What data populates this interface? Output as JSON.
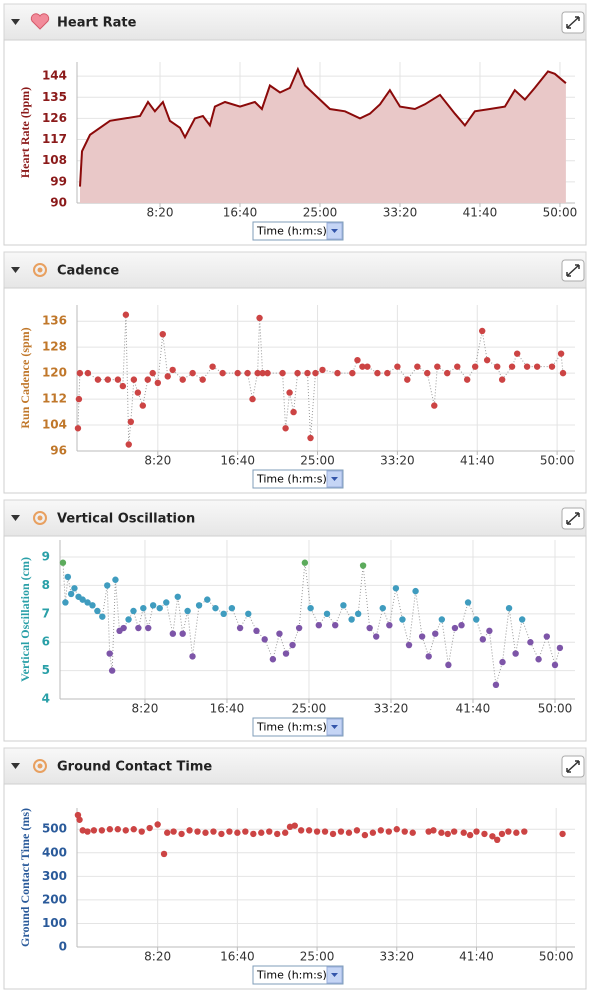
{
  "chart_data": [
    {
      "type": "area",
      "title": "Heart Rate",
      "ylabel": "Heart Rate (bpm)",
      "xlabel": "Time (h:m:s)",
      "color": "#8b0a0a",
      "fill_color": "#e9c8c8",
      "label_color": "#8b1a1a",
      "grid": true,
      "xlim": [
        -19,
        3094
      ],
      "ylim": [
        90,
        150
      ],
      "xticks": [
        {
          "value": 500,
          "label": "8:20"
        },
        {
          "value": 1000,
          "label": "16:40"
        },
        {
          "value": 1500,
          "label": "25:00"
        },
        {
          "value": 2000,
          "label": "33:20"
        },
        {
          "value": 2500,
          "label": "41:40"
        },
        {
          "value": 3000,
          "label": "50:00"
        }
      ],
      "yticks": [
        90,
        99,
        108,
        117,
        126,
        135,
        144
      ],
      "x": [
        0,
        12,
        62,
        125,
        187,
        281,
        375,
        425,
        468,
        518,
        562,
        625,
        656,
        718,
        768,
        812,
        843,
        906,
        1000,
        1093,
        1137,
        1187,
        1250,
        1312,
        1362,
        1406,
        1468,
        1562,
        1656,
        1750,
        1812,
        1875,
        1937,
        2000,
        2093,
        2156,
        2250,
        2343,
        2406,
        2468,
        2562,
        2656,
        2718,
        2781,
        2843,
        2925,
        2968,
        3037
      ],
      "values": [
        97,
        112,
        119,
        122,
        125,
        126,
        127,
        133,
        129,
        133,
        125,
        122,
        118,
        126,
        127,
        123,
        131,
        133,
        131,
        133,
        130,
        140,
        137,
        139,
        147,
        140,
        136,
        130,
        129,
        126,
        128,
        132,
        138,
        131,
        130,
        132,
        136,
        128,
        123,
        129,
        130,
        131,
        138,
        134,
        139,
        146,
        145,
        141
      ]
    },
    {
      "type": "scatter",
      "connect": true,
      "title": "Cadence",
      "ylabel": "Run Cadence (spm)",
      "xlabel": "Time (h:m:s)",
      "color": "#cc4444",
      "label_color": "#c0772a",
      "grid": true,
      "xlim": [
        -6,
        3112
      ],
      "ylim": [
        96,
        141
      ],
      "xticks": [
        {
          "value": 500,
          "label": "8:20"
        },
        {
          "value": 1000,
          "label": "16:40"
        },
        {
          "value": 1500,
          "label": "25:00"
        },
        {
          "value": 2000,
          "label": "33:20"
        },
        {
          "value": 2500,
          "label": "41:40"
        },
        {
          "value": 3000,
          "label": "50:00"
        }
      ],
      "yticks": [
        96,
        104,
        112,
        120,
        128,
        136
      ],
      "x": [
        0,
        6,
        12,
        62,
        125,
        187,
        250,
        281,
        300,
        318,
        331,
        350,
        375,
        406,
        437,
        468,
        500,
        531,
        562,
        593,
        656,
        718,
        781,
        843,
        906,
        1000,
        1062,
        1093,
        1125,
        1137,
        1156,
        1187,
        1281,
        1300,
        1325,
        1350,
        1375,
        1437,
        1456,
        1487,
        1531,
        1625,
        1718,
        1750,
        1781,
        1812,
        1875,
        1937,
        2000,
        2062,
        2125,
        2187,
        2231,
        2250,
        2312,
        2375,
        2437,
        2487,
        2531,
        2562,
        2625,
        2656,
        2718,
        2750,
        2812,
        2875,
        2968,
        3025,
        3037
      ],
      "values": [
        103,
        112,
        120,
        120,
        118,
        118,
        118,
        116,
        138,
        98,
        105,
        118,
        114,
        110,
        118,
        120,
        117,
        132,
        119,
        121,
        118,
        120,
        118,
        122,
        120,
        120,
        120,
        112,
        120,
        137,
        120,
        120,
        120,
        103,
        114,
        108,
        120,
        120,
        100,
        120,
        121,
        120,
        120,
        124,
        122,
        122,
        120,
        120,
        122,
        118,
        122,
        120,
        110,
        122,
        120,
        122,
        118,
        122,
        133,
        124,
        122,
        118,
        122,
        126,
        122,
        122,
        122,
        126,
        120
      ]
    },
    {
      "type": "scatter",
      "connect": true,
      "title": "Vertical Oscillation",
      "ylabel": "Vertical Oscillation (cm)",
      "xlabel": "Time (h:m:s)",
      "label_color": "#2aa0a8",
      "grid": true,
      "xlim": [
        -18,
        3122
      ],
      "ylim": [
        4,
        9.6
      ],
      "xticks": [
        {
          "value": 500,
          "label": "8:20"
        },
        {
          "value": 1000,
          "label": "16:40"
        },
        {
          "value": 1500,
          "label": "25:00"
        },
        {
          "value": 2000,
          "label": "33:20"
        },
        {
          "value": 2500,
          "label": "41:40"
        },
        {
          "value": 3000,
          "label": "50:00"
        }
      ],
      "yticks": [
        4,
        5,
        6,
        7,
        8,
        9
      ],
      "x": [
        0,
        15,
        30,
        50,
        70,
        95,
        120,
        150,
        180,
        210,
        240,
        270,
        285,
        300,
        320,
        345,
        370,
        400,
        430,
        460,
        490,
        520,
        550,
        590,
        630,
        670,
        700,
        730,
        760,
        790,
        830,
        880,
        930,
        980,
        1030,
        1080,
        1130,
        1180,
        1230,
        1280,
        1320,
        1360,
        1400,
        1440,
        1475,
        1510,
        1560,
        1610,
        1660,
        1710,
        1760,
        1800,
        1830,
        1870,
        1910,
        1950,
        1990,
        2030,
        2070,
        2110,
        2150,
        2190,
        2230,
        2270,
        2310,
        2350,
        2390,
        2430,
        2470,
        2520,
        2560,
        2600,
        2640,
        2680,
        2720,
        2760,
        2800,
        2850,
        2900,
        2950,
        3000,
        3030
      ],
      "values": [
        8.8,
        7.4,
        8.3,
        7.7,
        7.9,
        7.6,
        7.5,
        7.4,
        7.3,
        7.1,
        6.9,
        8.0,
        5.6,
        5.0,
        8.2,
        6.4,
        6.5,
        6.8,
        7.1,
        6.5,
        7.2,
        6.5,
        7.3,
        7.2,
        7.4,
        6.3,
        7.6,
        6.3,
        7.1,
        5.5,
        7.3,
        7.5,
        7.2,
        7.0,
        7.2,
        6.5,
        7.0,
        6.4,
        6.1,
        5.4,
        6.3,
        5.6,
        5.9,
        6.5,
        8.8,
        7.2,
        6.6,
        7.0,
        6.6,
        7.3,
        6.8,
        7.0,
        8.7,
        6.5,
        6.2,
        7.2,
        6.6,
        7.9,
        6.8,
        5.9,
        7.8,
        6.2,
        5.5,
        6.3,
        6.8,
        5.2,
        6.5,
        6.6,
        7.4,
        6.8,
        6.1,
        6.4,
        4.5,
        5.3,
        7.2,
        5.6,
        6.8,
        6.0,
        5.4,
        6.2,
        5.2,
        5.8
      ],
      "colors": [
        "#5cab5c",
        "#3f9cbf",
        "#3f9cbf",
        "#3f9cbf",
        "#3f9cbf",
        "#3f9cbf",
        "#3f9cbf",
        "#3f9cbf",
        "#3f9cbf",
        "#3f9cbf",
        "#3f9cbf",
        "#3f9cbf",
        "#7d55a8",
        "#7d55a8",
        "#3f9cbf",
        "#7d55a8",
        "#7d55a8",
        "#3f9cbf",
        "#3f9cbf",
        "#7d55a8",
        "#3f9cbf",
        "#7d55a8",
        "#3f9cbf",
        "#3f9cbf",
        "#3f9cbf",
        "#7d55a8",
        "#3f9cbf",
        "#7d55a8",
        "#3f9cbf",
        "#7d55a8",
        "#3f9cbf",
        "#3f9cbf",
        "#3f9cbf",
        "#3f9cbf",
        "#3f9cbf",
        "#7d55a8",
        "#3f9cbf",
        "#7d55a8",
        "#7d55a8",
        "#7d55a8",
        "#7d55a8",
        "#7d55a8",
        "#7d55a8",
        "#7d55a8",
        "#5cab5c",
        "#3f9cbf",
        "#7d55a8",
        "#3f9cbf",
        "#7d55a8",
        "#3f9cbf",
        "#3f9cbf",
        "#3f9cbf",
        "#5cab5c",
        "#7d55a8",
        "#7d55a8",
        "#3f9cbf",
        "#7d55a8",
        "#3f9cbf",
        "#3f9cbf",
        "#7d55a8",
        "#3f9cbf",
        "#7d55a8",
        "#7d55a8",
        "#7d55a8",
        "#3f9cbf",
        "#7d55a8",
        "#7d55a8",
        "#7d55a8",
        "#3f9cbf",
        "#3f9cbf",
        "#7d55a8",
        "#7d55a8",
        "#7d55a8",
        "#7d55a8",
        "#3f9cbf",
        "#7d55a8",
        "#3f9cbf",
        "#7d55a8",
        "#7d55a8",
        "#7d55a8",
        "#7d55a8",
        "#7d55a8"
      ]
    },
    {
      "type": "scatter",
      "connect": false,
      "title": "Ground Contact Time",
      "ylabel": "Ground Contact Time (ms)",
      "xlabel": "Time (h:m:s)",
      "color": "#cc4444",
      "label_color": "#2a5a9a",
      "grid": true,
      "xlim": [
        -6,
        3118
      ],
      "ylim": [
        0,
        590
      ],
      "xticks": [
        {
          "value": 500,
          "label": "8:20"
        },
        {
          "value": 1000,
          "label": "16:40"
        },
        {
          "value": 1500,
          "label": "25:00"
        },
        {
          "value": 2000,
          "label": "33:20"
        },
        {
          "value": 2500,
          "label": "41:40"
        },
        {
          "value": 3000,
          "label": "50:00"
        }
      ],
      "yticks": [
        0,
        100,
        200,
        300,
        400,
        500
      ],
      "x": [
        0,
        10,
        30,
        60,
        100,
        150,
        200,
        250,
        300,
        350,
        400,
        450,
        500,
        540,
        560,
        600,
        650,
        700,
        750,
        800,
        850,
        900,
        950,
        1000,
        1050,
        1100,
        1150,
        1200,
        1250,
        1300,
        1330,
        1360,
        1400,
        1450,
        1500,
        1550,
        1600,
        1650,
        1700,
        1750,
        1800,
        1850,
        1900,
        1950,
        2000,
        2050,
        2100,
        2200,
        2230,
        2280,
        2320,
        2360,
        2420,
        2460,
        2500,
        2550,
        2600,
        2630,
        2660,
        2700,
        2750,
        2800,
        3040
      ],
      "values": [
        560,
        540,
        495,
        490,
        495,
        495,
        500,
        500,
        495,
        500,
        490,
        505,
        520,
        395,
        485,
        490,
        480,
        495,
        490,
        485,
        490,
        480,
        490,
        485,
        490,
        480,
        485,
        490,
        480,
        485,
        510,
        515,
        495,
        495,
        490,
        490,
        480,
        490,
        485,
        495,
        475,
        485,
        495,
        490,
        500,
        490,
        485,
        490,
        495,
        485,
        480,
        490,
        485,
        475,
        490,
        480,
        470,
        455,
        480,
        490,
        485,
        490,
        480
      ]
    }
  ]
}
